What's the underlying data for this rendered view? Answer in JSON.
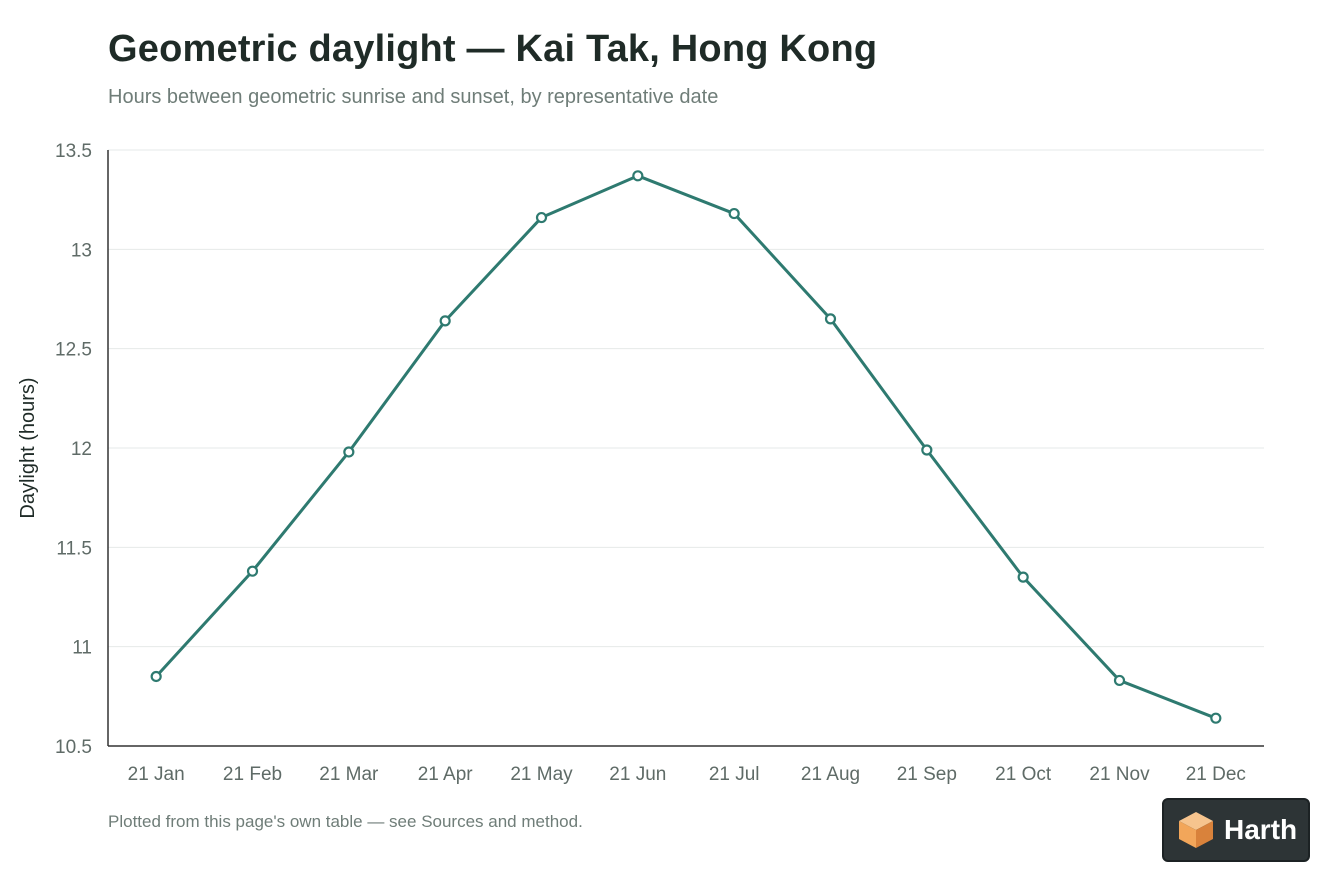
{
  "header": {
    "title": "Geometric daylight — Kai Tak, Hong Kong",
    "subtitle": "Hours between geometric sunrise and sunset, by representative date"
  },
  "footnote": "Plotted from this page's own table — see Sources and method.",
  "badge": {
    "label": "Harth",
    "icon": "cube-logo-icon"
  },
  "colors": {
    "line": "#2e7a70",
    "grid": "#e6e9e8",
    "axis": "#333333",
    "badge_bg": "#2d3436",
    "logo_orange": "#f2a65a"
  },
  "chart_data": {
    "type": "line",
    "title": "Geometric daylight — Kai Tak, Hong Kong",
    "subtitle": "Hours between geometric sunrise and sunset, by representative date",
    "xlabel": "",
    "ylabel": "Daylight (hours)",
    "categories": [
      "21 Jan",
      "21 Feb",
      "21 Mar",
      "21 Apr",
      "21 May",
      "21 Jun",
      "21 Jul",
      "21 Aug",
      "21 Sep",
      "21 Oct",
      "21 Nov",
      "21 Dec"
    ],
    "values": [
      10.85,
      11.38,
      11.98,
      12.64,
      13.16,
      13.37,
      13.18,
      12.65,
      11.99,
      11.35,
      10.83,
      10.64
    ],
    "ylim": [
      10.5,
      13.5
    ],
    "yticks": [
      "10.5",
      "11",
      "11.5",
      "12",
      "12.5",
      "13",
      "13.5"
    ],
    "ytick_values": [
      10.5,
      11,
      11.5,
      12,
      12.5,
      13,
      13.5
    ],
    "grid": true,
    "markers": "open-circle"
  }
}
